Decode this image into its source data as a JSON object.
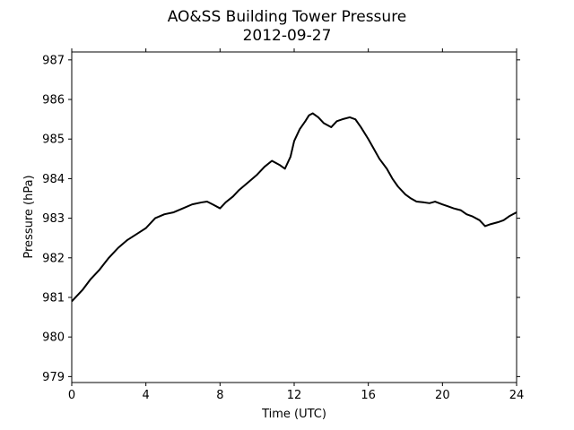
{
  "chart_data": {
    "type": "line",
    "title": "AO&SS Building Tower Pressure",
    "subtitle": "2012-09-27",
    "xlabel": "Time (UTC)",
    "ylabel": "Pressure (hPa)",
    "xlim": [
      0,
      24
    ],
    "ylim": [
      978.85,
      987.2
    ],
    "xticks": [
      0,
      4,
      8,
      12,
      16,
      20,
      24
    ],
    "yticks": [
      979,
      980,
      981,
      982,
      983,
      984,
      985,
      986,
      987
    ],
    "grid": false,
    "line_color": "#000000",
    "series": [
      {
        "x": [
          0,
          0.3,
          0.6,
          1.0,
          1.5,
          2.0,
          2.5,
          3.0,
          3.5,
          4.0,
          4.5,
          5.0,
          5.5,
          6.0,
          6.5,
          7.0,
          7.3,
          7.6,
          8.0,
          8.3,
          8.7,
          9.0,
          9.5,
          10.0,
          10.4,
          10.8,
          11.2,
          11.5,
          11.8,
          12.0,
          12.3,
          12.6,
          12.8,
          13.0,
          13.3,
          13.6,
          14.0,
          14.3,
          14.6,
          15.0,
          15.3,
          15.6,
          16.0,
          16.3,
          16.6,
          17.0,
          17.3,
          17.6,
          18.0,
          18.3,
          18.6,
          19.0,
          19.3,
          19.6,
          20.0,
          20.3,
          20.6,
          21.0,
          21.3,
          21.6,
          22.0,
          22.3,
          22.6,
          23.0,
          23.3,
          23.6,
          24.0
        ],
        "y": [
          980.9,
          981.05,
          981.2,
          981.45,
          981.7,
          982.0,
          982.25,
          982.45,
          982.6,
          982.75,
          983.0,
          983.1,
          983.15,
          983.25,
          983.35,
          983.4,
          983.42,
          983.35,
          983.25,
          983.4,
          983.55,
          983.7,
          983.9,
          984.1,
          984.3,
          984.45,
          984.35,
          984.25,
          984.55,
          984.95,
          985.25,
          985.45,
          985.6,
          985.65,
          985.55,
          985.4,
          985.3,
          985.45,
          985.5,
          985.55,
          985.5,
          985.3,
          985.0,
          984.75,
          984.5,
          984.25,
          984.0,
          983.8,
          983.6,
          983.5,
          983.42,
          983.4,
          983.38,
          983.42,
          983.35,
          983.3,
          983.25,
          983.2,
          983.1,
          983.05,
          982.95,
          982.8,
          982.85,
          982.9,
          982.95,
          983.05,
          983.15
        ]
      }
    ]
  }
}
